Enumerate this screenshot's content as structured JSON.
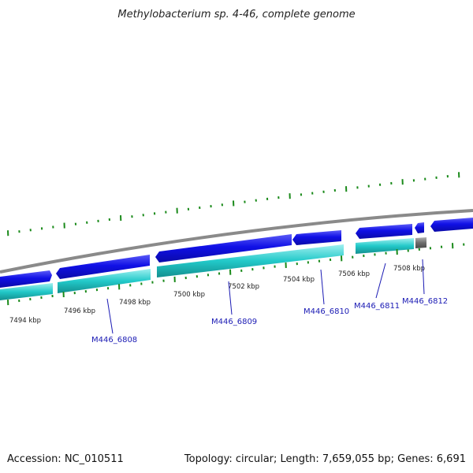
{
  "title": "Methylobacterium sp. 4-46, complete genome",
  "footer": {
    "accession": "Accession: NC_010511",
    "summary": "Topology: circular; Length: 7,659,055 bp; Genes: 6,691"
  },
  "colors": {
    "background": "#ffffff",
    "backbone": "#8a8a8a",
    "gene_forward": "#1010e6",
    "gene_forward_light": "#5c5cf7",
    "cds": "#22c9c9",
    "cds_light": "#9ff0f0",
    "unknown": "#6e6e6e",
    "ticks": "#1a8a1a",
    "label_text": "#1a1ab4",
    "leader": "#1a1ab4"
  },
  "axis": {
    "unit": "kbp",
    "labels": [
      "7494 kbp",
      "7496 kbp",
      "7498 kbp",
      "7500 kbp",
      "7502 kbp",
      "7504 kbp",
      "7506 kbp",
      "7508 kbp"
    ]
  },
  "genes": [
    {
      "label": "M446_6808"
    },
    {
      "label": "M446_6809"
    },
    {
      "label": "M446_6810"
    },
    {
      "label": "M446_6811"
    },
    {
      "label": "M446_6812"
    }
  ]
}
